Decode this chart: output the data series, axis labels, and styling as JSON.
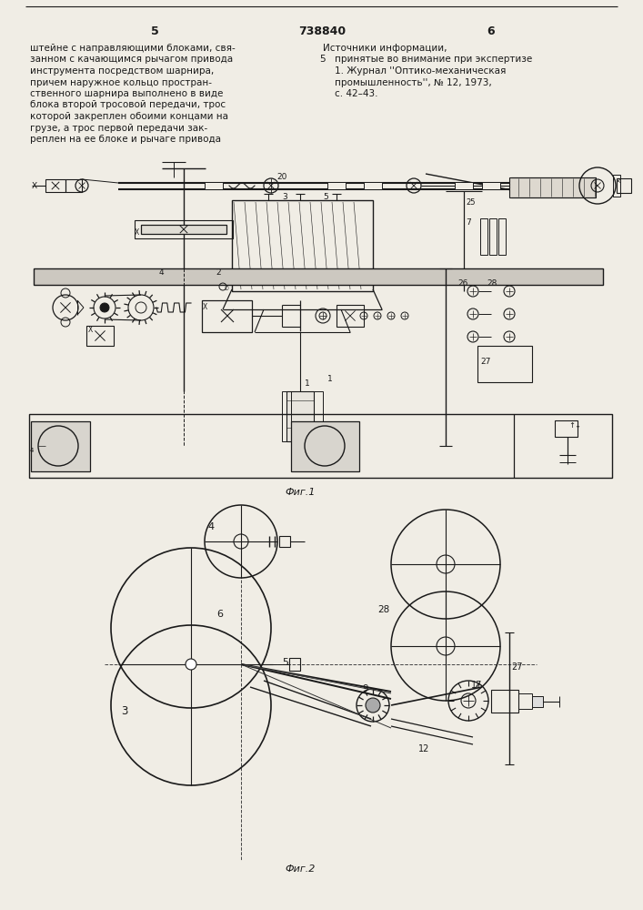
{
  "page_width": 7.07,
  "page_height": 10.0,
  "bg": "#f0ede5",
  "lc": "#1a1a1a",
  "tc": "#1a1a1a",
  "page_num_left": "5",
  "page_num_center": "738840",
  "page_num_right": "6",
  "text_col1": [
    "штейне с направляющими блоками, свя-",
    "занном с качающимся рычагом привода",
    "инструмента посредством шарнира,",
    "причем наружное кольцо простран-",
    "ственного шарнира выполнено в виде",
    "блока второй тросовой передачи, трос",
    "которой закреплен обоими концами на",
    "грузе, а трос первой передачи зак-",
    "реплен на ее блоке и рычаге привода"
  ],
  "text_col2_header": "Источники информации,",
  "text_col2": [
    "принятые во внимание при экспертизе",
    "1. Журнал ''Оптико-механическая",
    "промышленность'', № 12, 1973,",
    "с. 42–43."
  ],
  "text_col2_num": "5",
  "fig1_caption": "Фиг.1",
  "fig2_caption": "Фиг.2"
}
